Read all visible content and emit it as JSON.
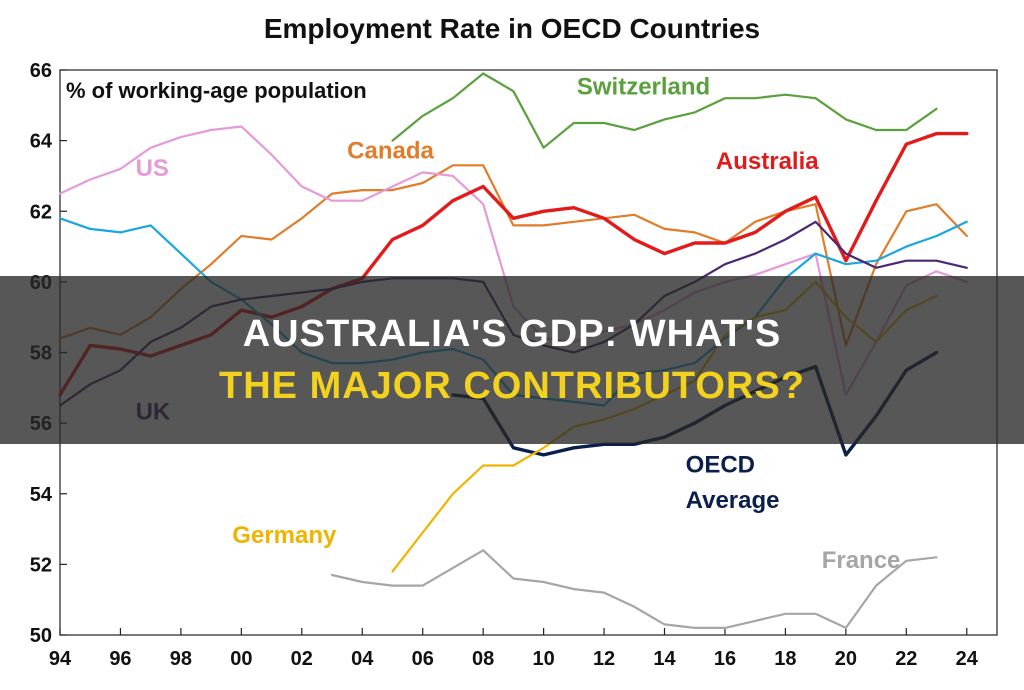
{
  "overlay": {
    "line1": "Australia's GDP: What's",
    "line2": "The Major Contributors?"
  },
  "chart_data": {
    "type": "line",
    "title": "Employment Rate in OECD Countries",
    "ylabel": "% of working-age population",
    "xlabel": "",
    "xlim": [
      1994,
      2025
    ],
    "ylim": [
      50,
      66
    ],
    "x_ticks": [
      1994,
      1996,
      1998,
      2000,
      2002,
      2004,
      2006,
      2008,
      2010,
      2012,
      2014,
      2016,
      2018,
      2020,
      2022,
      2024
    ],
    "x_tick_labels": [
      "94",
      "96",
      "98",
      "00",
      "02",
      "04",
      "06",
      "08",
      "10",
      "12",
      "14",
      "16",
      "18",
      "20",
      "22",
      "24"
    ],
    "y_ticks": [
      50,
      52,
      54,
      56,
      58,
      60,
      62,
      64,
      66
    ],
    "y_tick_labels": [
      "50",
      "52",
      "54",
      "56",
      "58",
      "60",
      "62",
      "64",
      "66"
    ],
    "grid": false,
    "legend": "inline labels",
    "series": [
      {
        "name": "Switzerland",
        "color": "#5aa03c",
        "x": [
          2005,
          2006,
          2007,
          2008,
          2009,
          2010,
          2011,
          2012,
          2013,
          2014,
          2015,
          2016,
          2017,
          2018,
          2019,
          2020,
          2021,
          2022,
          2023
        ],
        "y": [
          64.0,
          64.7,
          65.2,
          65.9,
          65.4,
          63.8,
          64.5,
          64.5,
          64.3,
          64.6,
          64.8,
          65.2,
          65.2,
          65.3,
          65.2,
          64.6,
          64.3,
          64.3,
          64.9
        ]
      },
      {
        "name": "Canada",
        "color": "#e07c2a",
        "x": [
          1994,
          1995,
          1996,
          1997,
          1998,
          1999,
          2000,
          2001,
          2002,
          2003,
          2004,
          2005,
          2006,
          2007,
          2008,
          2009,
          2010,
          2011,
          2012,
          2013,
          2014,
          2015,
          2016,
          2017,
          2018,
          2019,
          2020,
          2021,
          2022,
          2023,
          2024
        ],
        "y": [
          58.4,
          58.7,
          58.5,
          59.0,
          59.8,
          60.5,
          61.3,
          61.2,
          61.8,
          62.5,
          62.6,
          62.6,
          62.8,
          63.3,
          63.3,
          61.6,
          61.6,
          61.7,
          61.8,
          61.9,
          61.5,
          61.4,
          61.1,
          61.7,
          62.0,
          62.2,
          58.2,
          60.5,
          62.0,
          62.2,
          61.3
        ]
      },
      {
        "name": "US",
        "color": "#e69ad8",
        "x": [
          1994,
          1995,
          1996,
          1997,
          1998,
          1999,
          2000,
          2001,
          2002,
          2003,
          2004,
          2005,
          2006,
          2007,
          2008,
          2009,
          2010,
          2011,
          2012,
          2013,
          2014,
          2015,
          2016,
          2017,
          2018,
          2019,
          2020,
          2021,
          2022,
          2023,
          2024
        ],
        "y": [
          62.5,
          62.9,
          63.2,
          63.8,
          64.1,
          64.3,
          64.4,
          63.6,
          62.7,
          62.3,
          62.3,
          62.7,
          63.1,
          63.0,
          62.2,
          59.3,
          58.4,
          58.3,
          58.6,
          58.8,
          59.2,
          59.7,
          60.0,
          60.2,
          60.5,
          60.8,
          56.8,
          58.3,
          59.9,
          60.3,
          60.0
        ]
      },
      {
        "name": "Australia",
        "color": "#e31a1a",
        "x": [
          1994,
          1995,
          1996,
          1997,
          1998,
          1999,
          2000,
          2001,
          2002,
          2003,
          2004,
          2005,
          2006,
          2007,
          2008,
          2009,
          2010,
          2011,
          2012,
          2013,
          2014,
          2015,
          2016,
          2017,
          2018,
          2019,
          2020,
          2021,
          2022,
          2023,
          2024
        ],
        "y": [
          56.8,
          58.2,
          58.1,
          57.9,
          58.2,
          58.5,
          59.2,
          59.0,
          59.3,
          59.8,
          60.1,
          61.2,
          61.6,
          62.3,
          62.7,
          61.8,
          62.0,
          62.1,
          61.8,
          61.2,
          60.8,
          61.1,
          61.1,
          61.4,
          62.0,
          62.4,
          60.6,
          62.3,
          63.9,
          64.2,
          64.2
        ]
      },
      {
        "name": "",
        "color": "#1aa7e0",
        "x": [
          1994,
          1995,
          1996,
          1997,
          1998,
          1999,
          2000,
          2001,
          2002,
          2003,
          2004,
          2005,
          2006,
          2007,
          2008,
          2009,
          2010,
          2011,
          2012,
          2013,
          2014,
          2015,
          2016,
          2017,
          2018,
          2019,
          2020,
          2021,
          2022,
          2023,
          2024
        ],
        "y": [
          61.8,
          61.5,
          61.4,
          61.6,
          60.8,
          60.0,
          59.5,
          58.8,
          58.0,
          57.7,
          57.7,
          57.8,
          58.0,
          58.1,
          57.8,
          56.8,
          56.7,
          56.6,
          56.5,
          57.4,
          57.5,
          57.7,
          58.4,
          59.0,
          60.1,
          60.8,
          60.5,
          60.6,
          61.0,
          61.3,
          61.7
        ]
      },
      {
        "name": "UK",
        "color": "#4b2773",
        "x": [
          1994,
          1995,
          1996,
          1997,
          1998,
          1999,
          2000,
          2001,
          2002,
          2003,
          2004,
          2005,
          2006,
          2007,
          2008,
          2009,
          2010,
          2011,
          2012,
          2013,
          2014,
          2015,
          2016,
          2017,
          2018,
          2019,
          2020,
          2021,
          2022,
          2023,
          2024
        ],
        "y": [
          56.5,
          57.1,
          57.5,
          58.3,
          58.7,
          59.3,
          59.5,
          59.6,
          59.7,
          59.8,
          60.0,
          60.1,
          60.1,
          60.1,
          60.0,
          58.5,
          58.2,
          58.0,
          58.3,
          58.8,
          59.6,
          60.0,
          60.5,
          60.8,
          61.2,
          61.7,
          60.8,
          60.4,
          60.6,
          60.6,
          60.4
        ]
      },
      {
        "name": "OECD Average",
        "color": "#0b1f4d",
        "x": [
          2007,
          2008,
          2009,
          2010,
          2011,
          2012,
          2013,
          2014,
          2015,
          2016,
          2017,
          2018,
          2019,
          2020,
          2021,
          2022,
          2023
        ],
        "y": [
          56.8,
          56.7,
          55.3,
          55.1,
          55.3,
          55.4,
          55.4,
          55.6,
          56.0,
          56.5,
          56.9,
          57.3,
          57.6,
          55.1,
          56.2,
          57.5,
          58.0
        ]
      },
      {
        "name": "Germany",
        "color": "#f0b400",
        "x": [
          2005,
          2006,
          2007,
          2008,
          2009,
          2010,
          2011,
          2012,
          2013,
          2014,
          2015,
          2016,
          2017,
          2018,
          2019,
          2020,
          2021,
          2022,
          2023
        ],
        "y": [
          51.8,
          52.9,
          54.0,
          54.8,
          54.8,
          55.3,
          55.9,
          56.1,
          56.4,
          56.8,
          57.2,
          58.5,
          59.0,
          59.2,
          60.0,
          59.0,
          58.3,
          59.2,
          59.6
        ]
      },
      {
        "name": "France",
        "color": "#a6a6a6",
        "x": [
          2003,
          2004,
          2005,
          2006,
          2007,
          2008,
          2009,
          2010,
          2011,
          2012,
          2013,
          2014,
          2015,
          2016,
          2017,
          2018,
          2019,
          2020,
          2021,
          2022,
          2023
        ],
        "y": [
          51.7,
          51.5,
          51.4,
          51.4,
          51.9,
          52.4,
          51.6,
          51.5,
          51.3,
          51.2,
          50.8,
          50.3,
          50.2,
          50.2,
          50.4,
          50.6,
          50.6,
          50.2,
          51.4,
          52.1,
          52.2
        ]
      }
    ],
    "annotations": [
      {
        "text": "Switzerland",
        "color": "#5aa03c",
        "x": 2011.1,
        "y": 65.3
      },
      {
        "text": "Canada",
        "color": "#e07c2a",
        "x": 2003.5,
        "y": 63.5
      },
      {
        "text": "US",
        "color": "#e69ad8",
        "x": 1996.5,
        "y": 63.0
      },
      {
        "text": "Australia",
        "color": "#e31a1a",
        "x": 2015.7,
        "y": 63.2
      },
      {
        "text": "UK",
        "color": "#4b2773",
        "x": 1996.5,
        "y": 56.1
      },
      {
        "text": "OECD",
        "color": "#0b1f4d",
        "x": 2014.7,
        "y": 54.6
      },
      {
        "text": "Average",
        "color": "#0b1f4d",
        "x": 2014.7,
        "y": 53.6
      },
      {
        "text": "Germany",
        "color": "#f0b400",
        "x": 1999.7,
        "y": 52.6
      },
      {
        "text": "France",
        "color": "#a6a6a6",
        "x": 2019.2,
        "y": 51.9
      }
    ]
  }
}
